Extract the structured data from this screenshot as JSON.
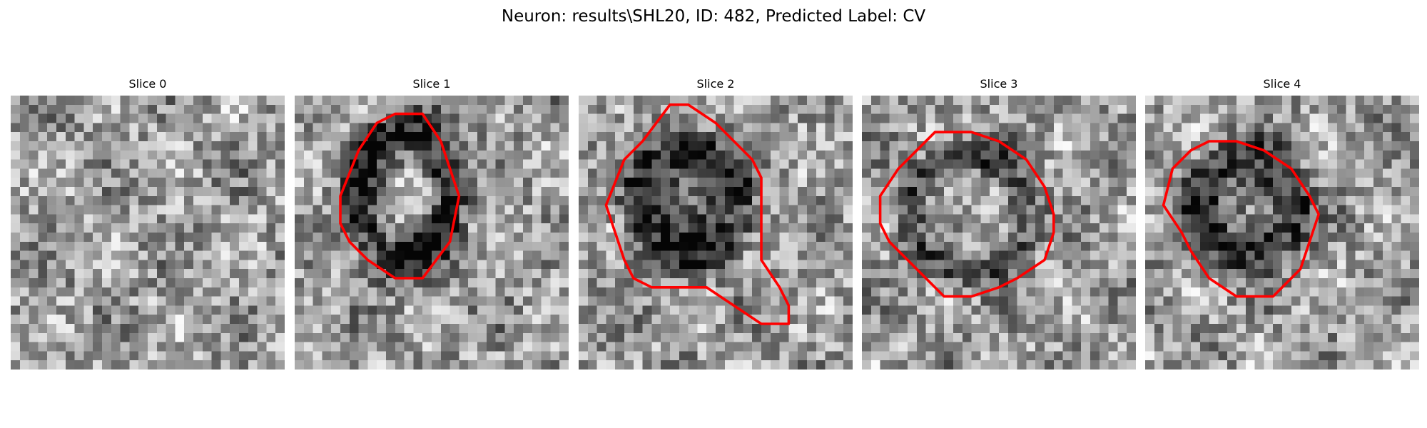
{
  "figure": {
    "title": "Neuron: results\\SHL20, ID: 482, Predicted Label: CV"
  },
  "style": {
    "contour_color": "#ff0000"
  },
  "slices": [
    {
      "label": "Slice 0",
      "has_contour": false,
      "contour": []
    },
    {
      "label": "Slice 1",
      "has_contour": true,
      "contour": [
        [
          11,
          2
        ],
        [
          14,
          2
        ],
        [
          16,
          5
        ],
        [
          17,
          8
        ],
        [
          18,
          11
        ],
        [
          17,
          16
        ],
        [
          14,
          20
        ],
        [
          11,
          20
        ],
        [
          8,
          18
        ],
        [
          6,
          16
        ],
        [
          5,
          14
        ],
        [
          5,
          11
        ],
        [
          7,
          6
        ],
        [
          9,
          3
        ]
      ]
    },
    {
      "label": "Slice 2",
      "has_contour": true,
      "contour": [
        [
          10,
          1
        ],
        [
          12,
          1
        ],
        [
          15,
          3
        ],
        [
          19,
          7
        ],
        [
          20,
          9
        ],
        [
          20,
          18
        ],
        [
          22,
          21
        ],
        [
          23,
          23
        ],
        [
          23,
          25
        ],
        [
          20,
          25
        ],
        [
          17,
          23
        ],
        [
          14,
          21
        ],
        [
          8,
          21
        ],
        [
          6,
          20
        ],
        [
          5,
          18
        ],
        [
          4,
          15
        ],
        [
          3,
          12
        ],
        [
          5,
          7
        ],
        [
          7,
          5
        ]
      ]
    },
    {
      "label": "Slice 3",
      "has_contour": true,
      "contour": [
        [
          8,
          4
        ],
        [
          12,
          4
        ],
        [
          15,
          5
        ],
        [
          18,
          7
        ],
        [
          20,
          10
        ],
        [
          21,
          13
        ],
        [
          21,
          15
        ],
        [
          20,
          18
        ],
        [
          17,
          20
        ],
        [
          15,
          21
        ],
        [
          12,
          22
        ],
        [
          9,
          22
        ],
        [
          6,
          19
        ],
        [
          3,
          16
        ],
        [
          2,
          14
        ],
        [
          2,
          11
        ],
        [
          4,
          8
        ],
        [
          6,
          6
        ]
      ]
    },
    {
      "label": "Slice 4",
      "has_contour": true,
      "contour": [
        [
          7,
          5
        ],
        [
          10,
          5
        ],
        [
          13,
          6
        ],
        [
          16,
          8
        ],
        [
          18,
          11
        ],
        [
          19,
          13
        ],
        [
          18,
          16
        ],
        [
          17,
          19
        ],
        [
          14,
          22
        ],
        [
          10,
          22
        ],
        [
          7,
          20
        ],
        [
          5,
          17
        ],
        [
          4,
          15
        ],
        [
          2,
          12
        ],
        [
          3,
          8
        ],
        [
          5,
          6
        ]
      ]
    }
  ]
}
